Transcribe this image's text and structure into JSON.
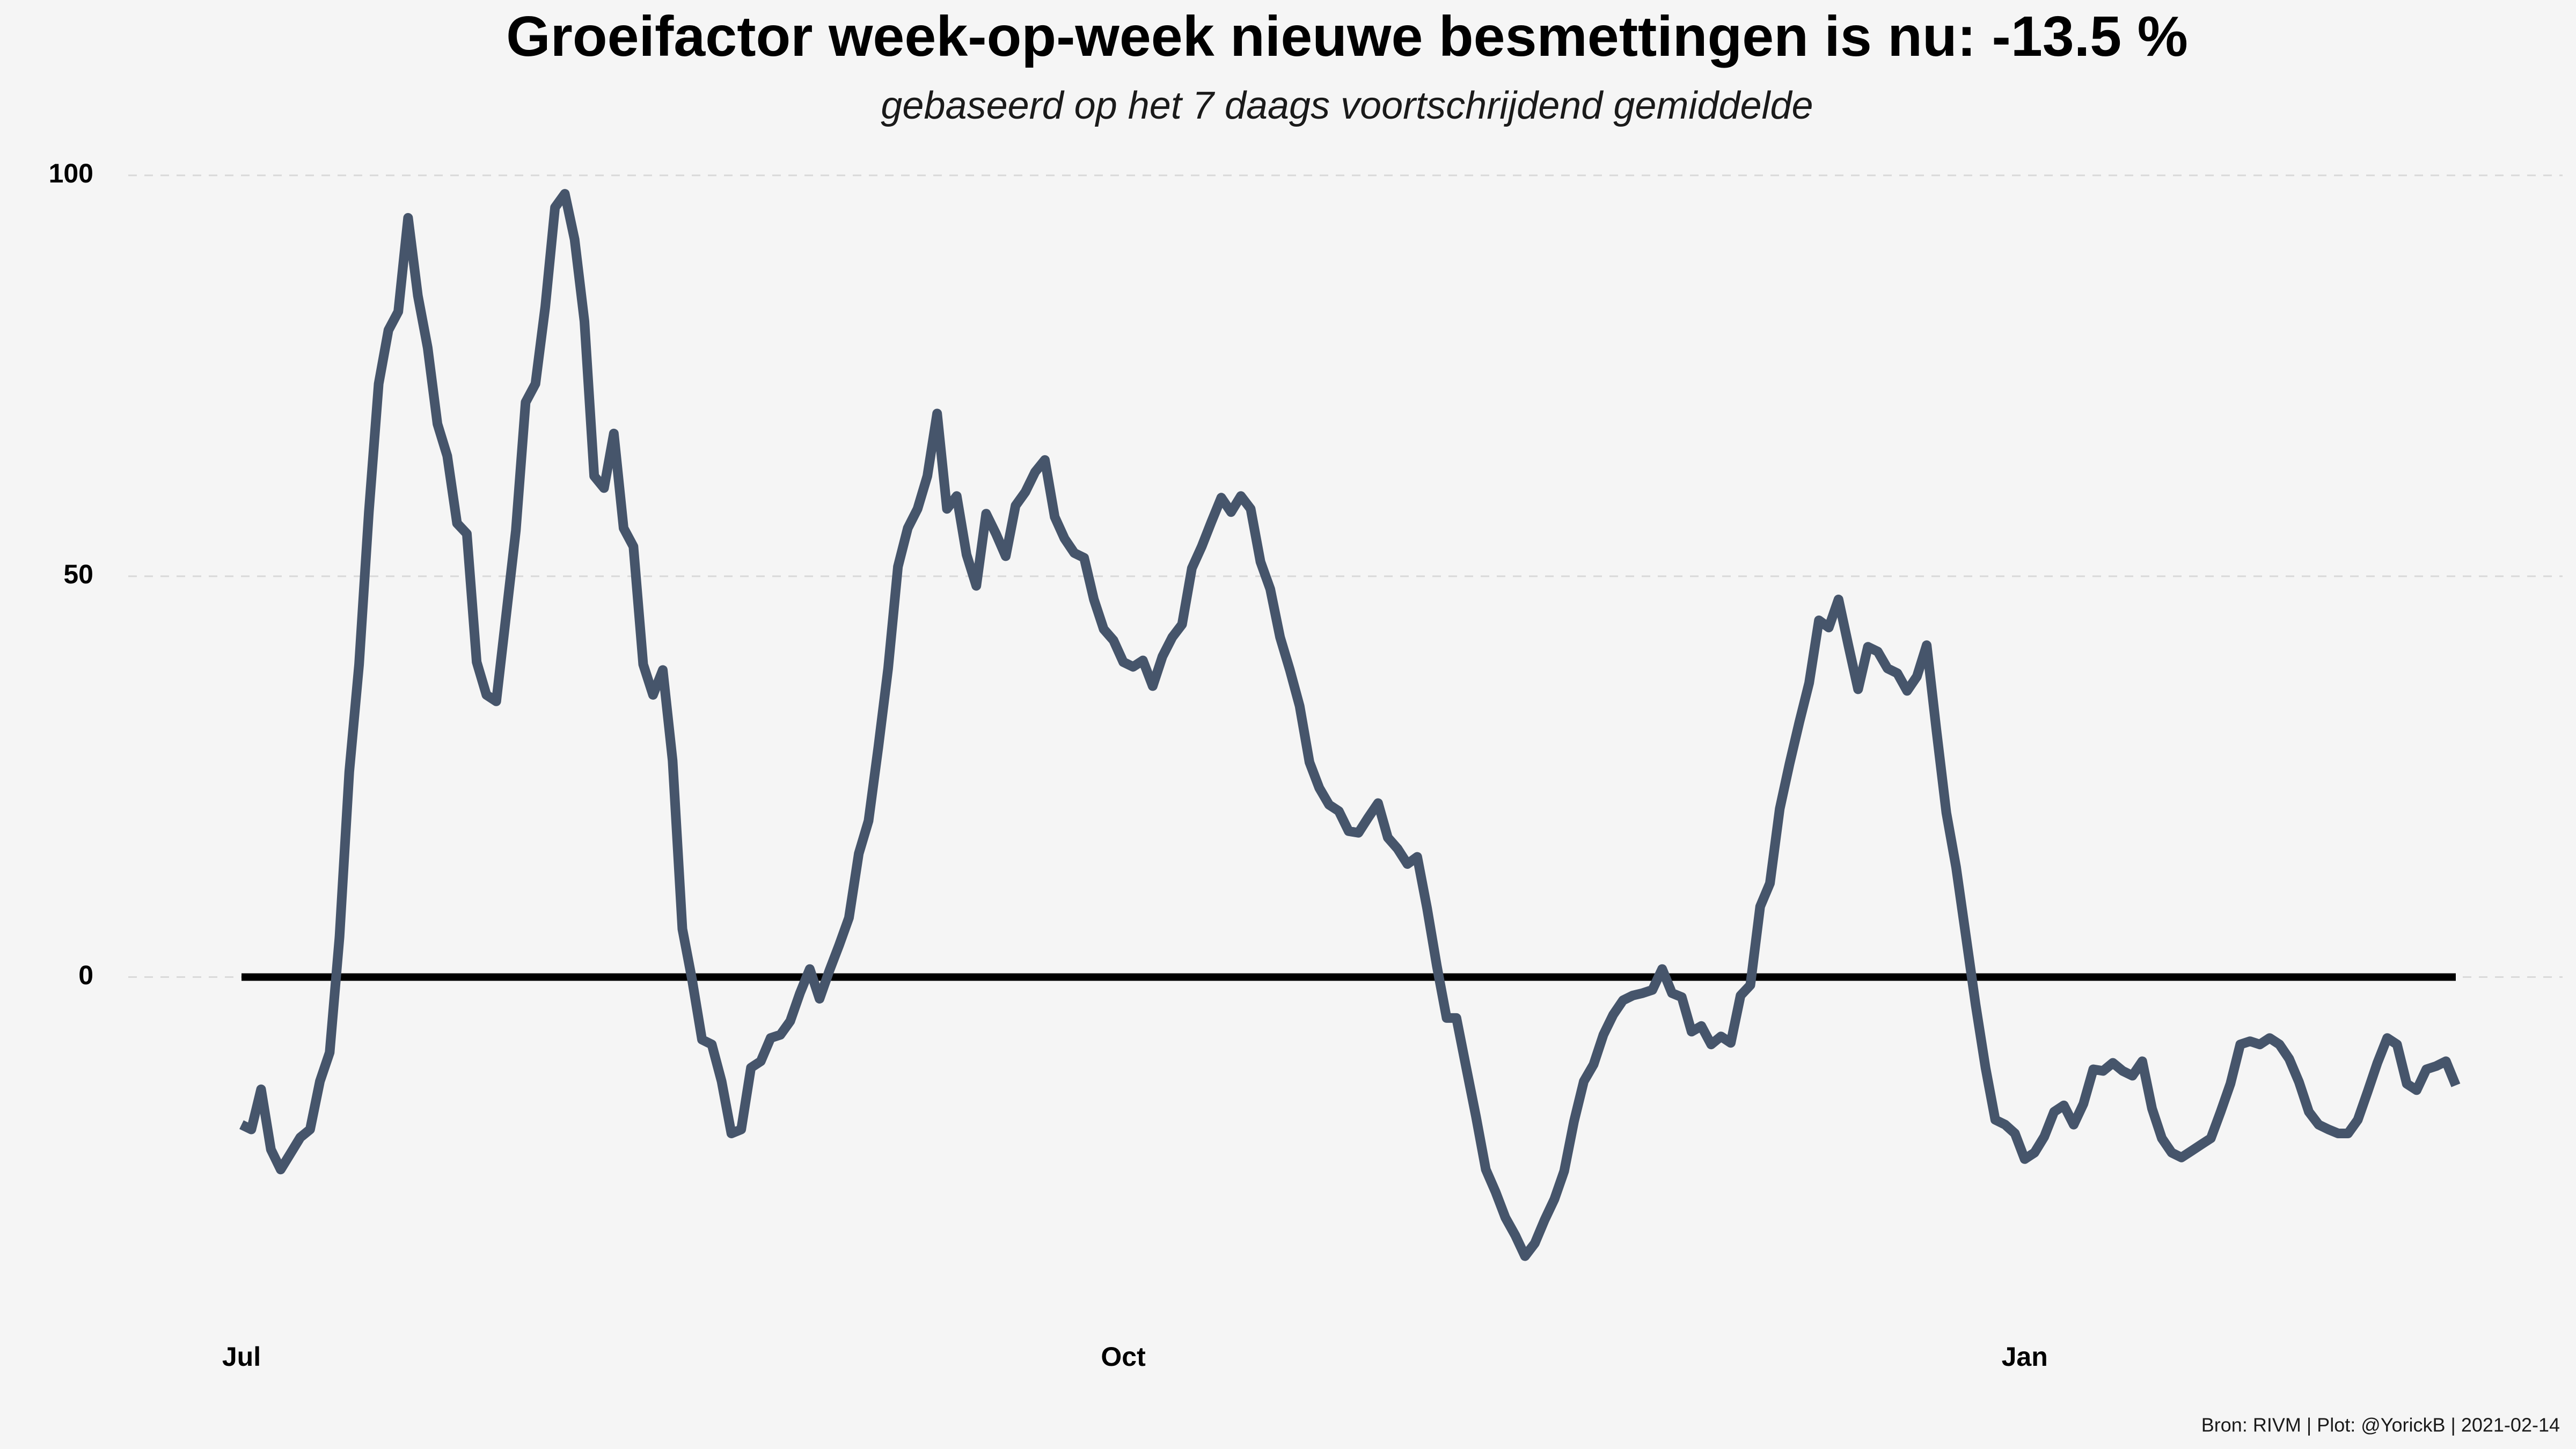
{
  "chart_data": {
    "type": "line",
    "title": "Groeifactor week-op-week nieuwe besmettingen is nu:  -13.5 %",
    "subtitle": "gebaseerd op het 7 daags voortschrijdend gemiddelde",
    "caption": "Bron: RIVM | Plot: @YorickB |  2021-02-14",
    "color": "#46556b",
    "grid": true,
    "ylim": [
      -44,
      104
    ],
    "yticks": [
      0,
      50,
      100
    ],
    "categories": [
      "Jul",
      null,
      null,
      null,
      null,
      null,
      null,
      null,
      null,
      null,
      null,
      null,
      null,
      null,
      null,
      null,
      null,
      null,
      null,
      null,
      null,
      null,
      null,
      null,
      null,
      null,
      null,
      null,
      null,
      null,
      null,
      null,
      null,
      null,
      null,
      null,
      null,
      null,
      null,
      null,
      null,
      null,
      null,
      null,
      null,
      null,
      null,
      null,
      null,
      null,
      null,
      null,
      null,
      null,
      null,
      null,
      null,
      null,
      null,
      null,
      null,
      null,
      null,
      null,
      null,
      null,
      null,
      null,
      null,
      null,
      null,
      null,
      null,
      null,
      null,
      null,
      null,
      null,
      null,
      null,
      null,
      null,
      null,
      null,
      null,
      null,
      null,
      null,
      null,
      null,
      "Oct",
      null,
      null,
      null,
      null,
      null,
      null,
      null,
      null,
      null,
      null,
      null,
      null,
      null,
      null,
      null,
      null,
      null,
      null,
      null,
      null,
      null,
      null,
      null,
      null,
      null,
      null,
      null,
      null,
      null,
      null,
      null,
      null,
      null,
      null,
      null,
      null,
      null,
      null,
      null,
      null,
      null,
      null,
      null,
      null,
      null,
      null,
      null,
      null,
      null,
      null,
      null,
      null,
      null,
      null,
      null,
      null,
      null,
      null,
      null,
      null,
      null,
      null,
      null,
      null,
      null,
      null,
      null,
      null,
      null,
      null,
      null,
      null,
      null,
      null,
      null,
      null,
      null,
      null,
      null,
      null,
      null,
      null,
      null,
      null,
      null,
      null,
      null,
      null,
      null,
      null,
      null,
      "Jan",
      null,
      null,
      null,
      null,
      null,
      null,
      null,
      null,
      null,
      null,
      null,
      null,
      null,
      null,
      null,
      null,
      null,
      null,
      null,
      null,
      null,
      null,
      null,
      null,
      null,
      null,
      null,
      null,
      null,
      null,
      null,
      null,
      null,
      null,
      null,
      null,
      null,
      null,
      null,
      null,
      null,
      null,
      null,
      null
    ],
    "values": [
      -18.4,
      -19,
      -14,
      -21.5,
      -24,
      -22,
      -20,
      -19,
      -13,
      -9.4,
      5,
      25.6,
      39,
      58,
      74,
      80.7,
      83,
      94.7,
      85,
      78.5,
      69,
      65,
      56.6,
      55.3,
      39.3,
      35.2,
      34.4,
      45,
      55.7,
      71.7,
      74,
      83.6,
      96,
      97.7,
      92,
      81.8,
      62.5,
      61,
      67.8,
      56,
      53.7,
      39,
      35.2,
      38.3,
      27,
      6,
      -0.4,
      -7.8,
      -8.4,
      -13,
      -19.5,
      -19,
      -11.3,
      -10.5,
      -7.6,
      -7.2,
      -5.5,
      -2,
      1,
      -2.7,
      0.8,
      4,
      7.4,
      15.4,
      19.5,
      28.7,
      38.5,
      51.2,
      56,
      58.4,
      62.5,
      70.3,
      58.4,
      60,
      52.7,
      48.8,
      57.8,
      55.3,
      52.5,
      58.8,
      60.5,
      63,
      64.5,
      57.4,
      54.7,
      52.9,
      52.3,
      47.1,
      43.4,
      42,
      39.3,
      38.7,
      39.5,
      36.3,
      40,
      42.4,
      44,
      51,
      53.7,
      56.8,
      59.8,
      58,
      60,
      58.4,
      51.8,
      48.4,
      42.4,
      38.3,
      33.8,
      26.8,
      23.6,
      21.5,
      20.7,
      18.2,
      18,
      19.9,
      21.7,
      17.4,
      16,
      14.1,
      15,
      8.6,
      1.4,
      -5.1,
      -5.1,
      -11.3,
      -17.4,
      -24,
      -26.8,
      -30,
      -32.2,
      -34.8,
      -33.2,
      -30.3,
      -27.7,
      -24.2,
      -18,
      -13,
      -10.9,
      -7.2,
      -4.7,
      -2.9,
      -2.3,
      -2,
      -1.6,
      1,
      -2,
      -2.5,
      -6.8,
      -6.1,
      -8.4,
      -7.4,
      -8.2,
      -2.3,
      -1,
      8.8,
      11.7,
      21,
      26.6,
      31.8,
      36.7,
      44.5,
      43.6,
      47.1,
      41.4,
      35.9,
      41.2,
      40.6,
      38.5,
      37.9,
      35.7,
      37.5,
      41.4,
      30.7,
      20.5,
      13.7,
      5.1,
      -3.5,
      -11.3,
      -17.8,
      -18.4,
      -19.5,
      -22.7,
      -21.9,
      -19.9,
      -16.8,
      -16,
      -18.4,
      -15.8,
      -11.5,
      -11.7,
      -10.7,
      -11.7,
      -12.3,
      -10.5,
      -16.4,
      -20.1,
      -21.9,
      -22.5,
      -21.7,
      -20.9,
      -20.1,
      -16.8,
      -13.3,
      -8.4,
      -8,
      -8.4,
      -7.6,
      -8.4,
      -10.2,
      -13.1,
      -16.8,
      -18.4,
      -19,
      -19.5,
      -19.5,
      -17.8,
      -14.3,
      -10.7,
      -7.6,
      -8.4,
      -13.3,
      -14.1,
      -11.5,
      -11.1,
      -10.5,
      -13.5
    ]
  }
}
